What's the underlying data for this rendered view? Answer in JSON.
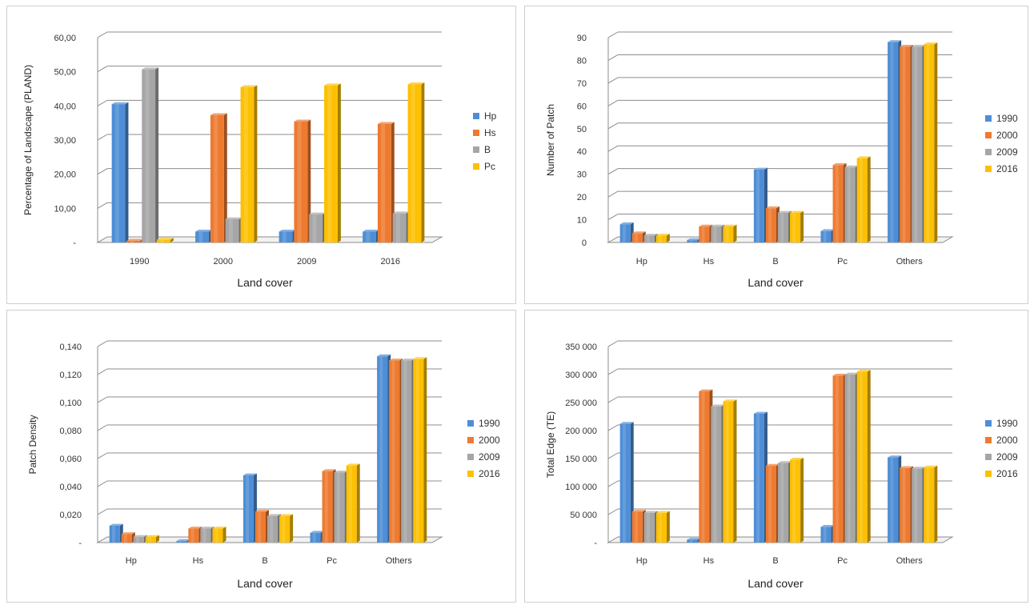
{
  "chart_data": [
    {
      "type": "bar",
      "categories": [
        "1990",
        "2000",
        "2009",
        "2016"
      ],
      "series": [
        {
          "name": "Hp",
          "values": [
            40.5,
            3.2,
            3.2,
            3.2
          ]
        },
        {
          "name": "Hs",
          "values": [
            0.5,
            37.3,
            35.4,
            34.7
          ]
        },
        {
          "name": "B",
          "values": [
            50.7,
            6.8,
            8.2,
            8.5
          ]
        },
        {
          "name": "Pc",
          "values": [
            0.8,
            45.5,
            46.0,
            46.3
          ]
        }
      ],
      "yticks": [
        "-",
        "10,00",
        "20,00",
        "30,00",
        "40,00",
        "50,00",
        "60,00"
      ],
      "xlabel": "Land cover",
      "ylabel": "Percentage of Landscape (PLAND)",
      "ylim": [
        0,
        60
      ],
      "grid": true,
      "legend": "right"
    },
    {
      "type": "bar",
      "categories": [
        "Hp",
        "Hs",
        "B",
        "Pc",
        "Others"
      ],
      "series": [
        {
          "name": "1990",
          "values": [
            8,
            1,
            32,
            5,
            88
          ]
        },
        {
          "name": "2000",
          "values": [
            4,
            7,
            15,
            34,
            86
          ]
        },
        {
          "name": "2009",
          "values": [
            3,
            7,
            13,
            33,
            86
          ]
        },
        {
          "name": "2016",
          "values": [
            3,
            7,
            13,
            37,
            87
          ]
        }
      ],
      "yticks": [
        "0",
        "10",
        "20",
        "30",
        "40",
        "50",
        "60",
        "70",
        "80",
        "90"
      ],
      "xlabel": "Land cover",
      "ylabel": "Number of Patch",
      "ylim": [
        0,
        90
      ],
      "grid": true,
      "legend": "right"
    },
    {
      "type": "bar",
      "categories": [
        "Hp",
        "Hs",
        "B",
        "Pc",
        "Others"
      ],
      "series": [
        {
          "name": "1990",
          "values": [
            0.012,
            0.001,
            0.048,
            0.007,
            0.133
          ]
        },
        {
          "name": "2000",
          "values": [
            0.006,
            0.01,
            0.022,
            0.051,
            0.13
          ]
        },
        {
          "name": "2009",
          "values": [
            0.004,
            0.01,
            0.019,
            0.05,
            0.13
          ]
        },
        {
          "name": "2016",
          "values": [
            0.004,
            0.01,
            0.019,
            0.055,
            0.131
          ]
        }
      ],
      "yticks": [
        "-",
        "0,020",
        "0,040",
        "0,060",
        "0,080",
        "0,100",
        "0,120",
        "0,140"
      ],
      "xlabel": "Land cover",
      "ylabel": "Patch Density",
      "ylim": [
        0,
        0.14
      ],
      "grid": true,
      "legend": "right"
    },
    {
      "type": "bar",
      "categories": [
        "Hp",
        "Hs",
        "B",
        "Pc",
        "Others"
      ],
      "series": [
        {
          "name": "1990",
          "values": [
            212000,
            5000,
            230000,
            28000,
            152000
          ]
        },
        {
          "name": "2000",
          "values": [
            55000,
            270000,
            137000,
            298000,
            133000
          ]
        },
        {
          "name": "2009",
          "values": [
            53000,
            243000,
            142000,
            300000,
            132000
          ]
        },
        {
          "name": "2016",
          "values": [
            53000,
            252000,
            148000,
            305000,
            134000
          ]
        }
      ],
      "yticks": [
        "-",
        "50 000",
        "100 000",
        "150 000",
        "200 000",
        "250 000",
        "300 000",
        "350 000"
      ],
      "xlabel": "Land cover",
      "ylabel": "Total Edge (TE)",
      "ylim": [
        0,
        350000
      ],
      "grid": true,
      "legend": "right"
    }
  ],
  "colors": {
    "series": [
      "#4e8ed6",
      "#ee7a30",
      "#a6a6a6",
      "#fdc002"
    ],
    "grid": "#8c8c8c",
    "text": "#333333"
  }
}
